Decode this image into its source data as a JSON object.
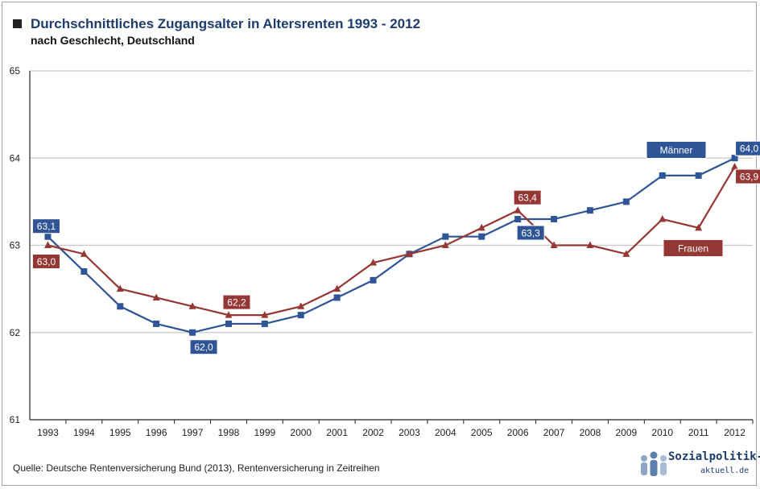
{
  "header": {
    "title": "Durchschnittliches Zugangsalter in Altersrenten 1993 - 2012",
    "subtitle": "nach Geschlecht, Deutschland"
  },
  "footer": {
    "source": "Quelle: Deutsche Rentenversicherung Bund (2013), Rentenversicherung in Zeitreihen",
    "logo_text_main": "Sozialpolitik-",
    "logo_text_sub": "aktuell.de"
  },
  "colors": {
    "maenner": "#2f5597",
    "frauen": "#953735",
    "grid": "#c8c8c8",
    "axis": "#222222"
  },
  "chart_data": {
    "type": "line",
    "title": "Durchschnittliches Zugangsalter in Altersrenten 1993 - 2012",
    "subtitle": "nach Geschlecht, Deutschland",
    "xlabel": "",
    "ylabel": "",
    "ylim": [
      61,
      65
    ],
    "yticks": [
      "61",
      "62",
      "63",
      "64",
      "65"
    ],
    "grid": true,
    "x": [
      "1993",
      "1994",
      "1995",
      "1996",
      "1997",
      "1998",
      "1999",
      "2000",
      "2001",
      "2002",
      "2003",
      "2004",
      "2005",
      "2006",
      "2007",
      "2008",
      "2009",
      "2010",
      "2011",
      "2012"
    ],
    "series": [
      {
        "name": "Männer",
        "marker": "square",
        "values": [
          63.1,
          62.7,
          62.3,
          62.1,
          62.0,
          62.1,
          62.1,
          62.2,
          62.4,
          62.6,
          62.9,
          63.1,
          63.1,
          63.3,
          63.3,
          63.4,
          63.5,
          63.8,
          63.8,
          64.0
        ]
      },
      {
        "name": "Frauen",
        "marker": "triangle",
        "values": [
          63.0,
          62.9,
          62.5,
          62.4,
          62.3,
          62.2,
          62.2,
          62.3,
          62.5,
          62.8,
          62.9,
          63.0,
          63.2,
          63.4,
          63.0,
          63.0,
          62.9,
          63.3,
          63.2,
          63.9
        ]
      }
    ],
    "annotations": [
      {
        "series": "Männer",
        "x": "1993",
        "text": "63,1"
      },
      {
        "series": "Frauen",
        "x": "1993",
        "text": "63,0"
      },
      {
        "series": "Frauen",
        "x": "1998",
        "text": "62,2"
      },
      {
        "series": "Männer",
        "x": "1997",
        "text": "62,0"
      },
      {
        "series": "Frauen",
        "x": "2006",
        "text": "63,4"
      },
      {
        "series": "Männer",
        "x": "2006",
        "text": "63,3"
      },
      {
        "series": "Männer",
        "x": "2012",
        "text": "64,0"
      },
      {
        "series": "Frauen",
        "x": "2012",
        "text": "63,9"
      }
    ],
    "legend_labels": [
      {
        "series": "Männer",
        "text": "Männer"
      },
      {
        "series": "Frauen",
        "text": "Frauen"
      }
    ]
  }
}
